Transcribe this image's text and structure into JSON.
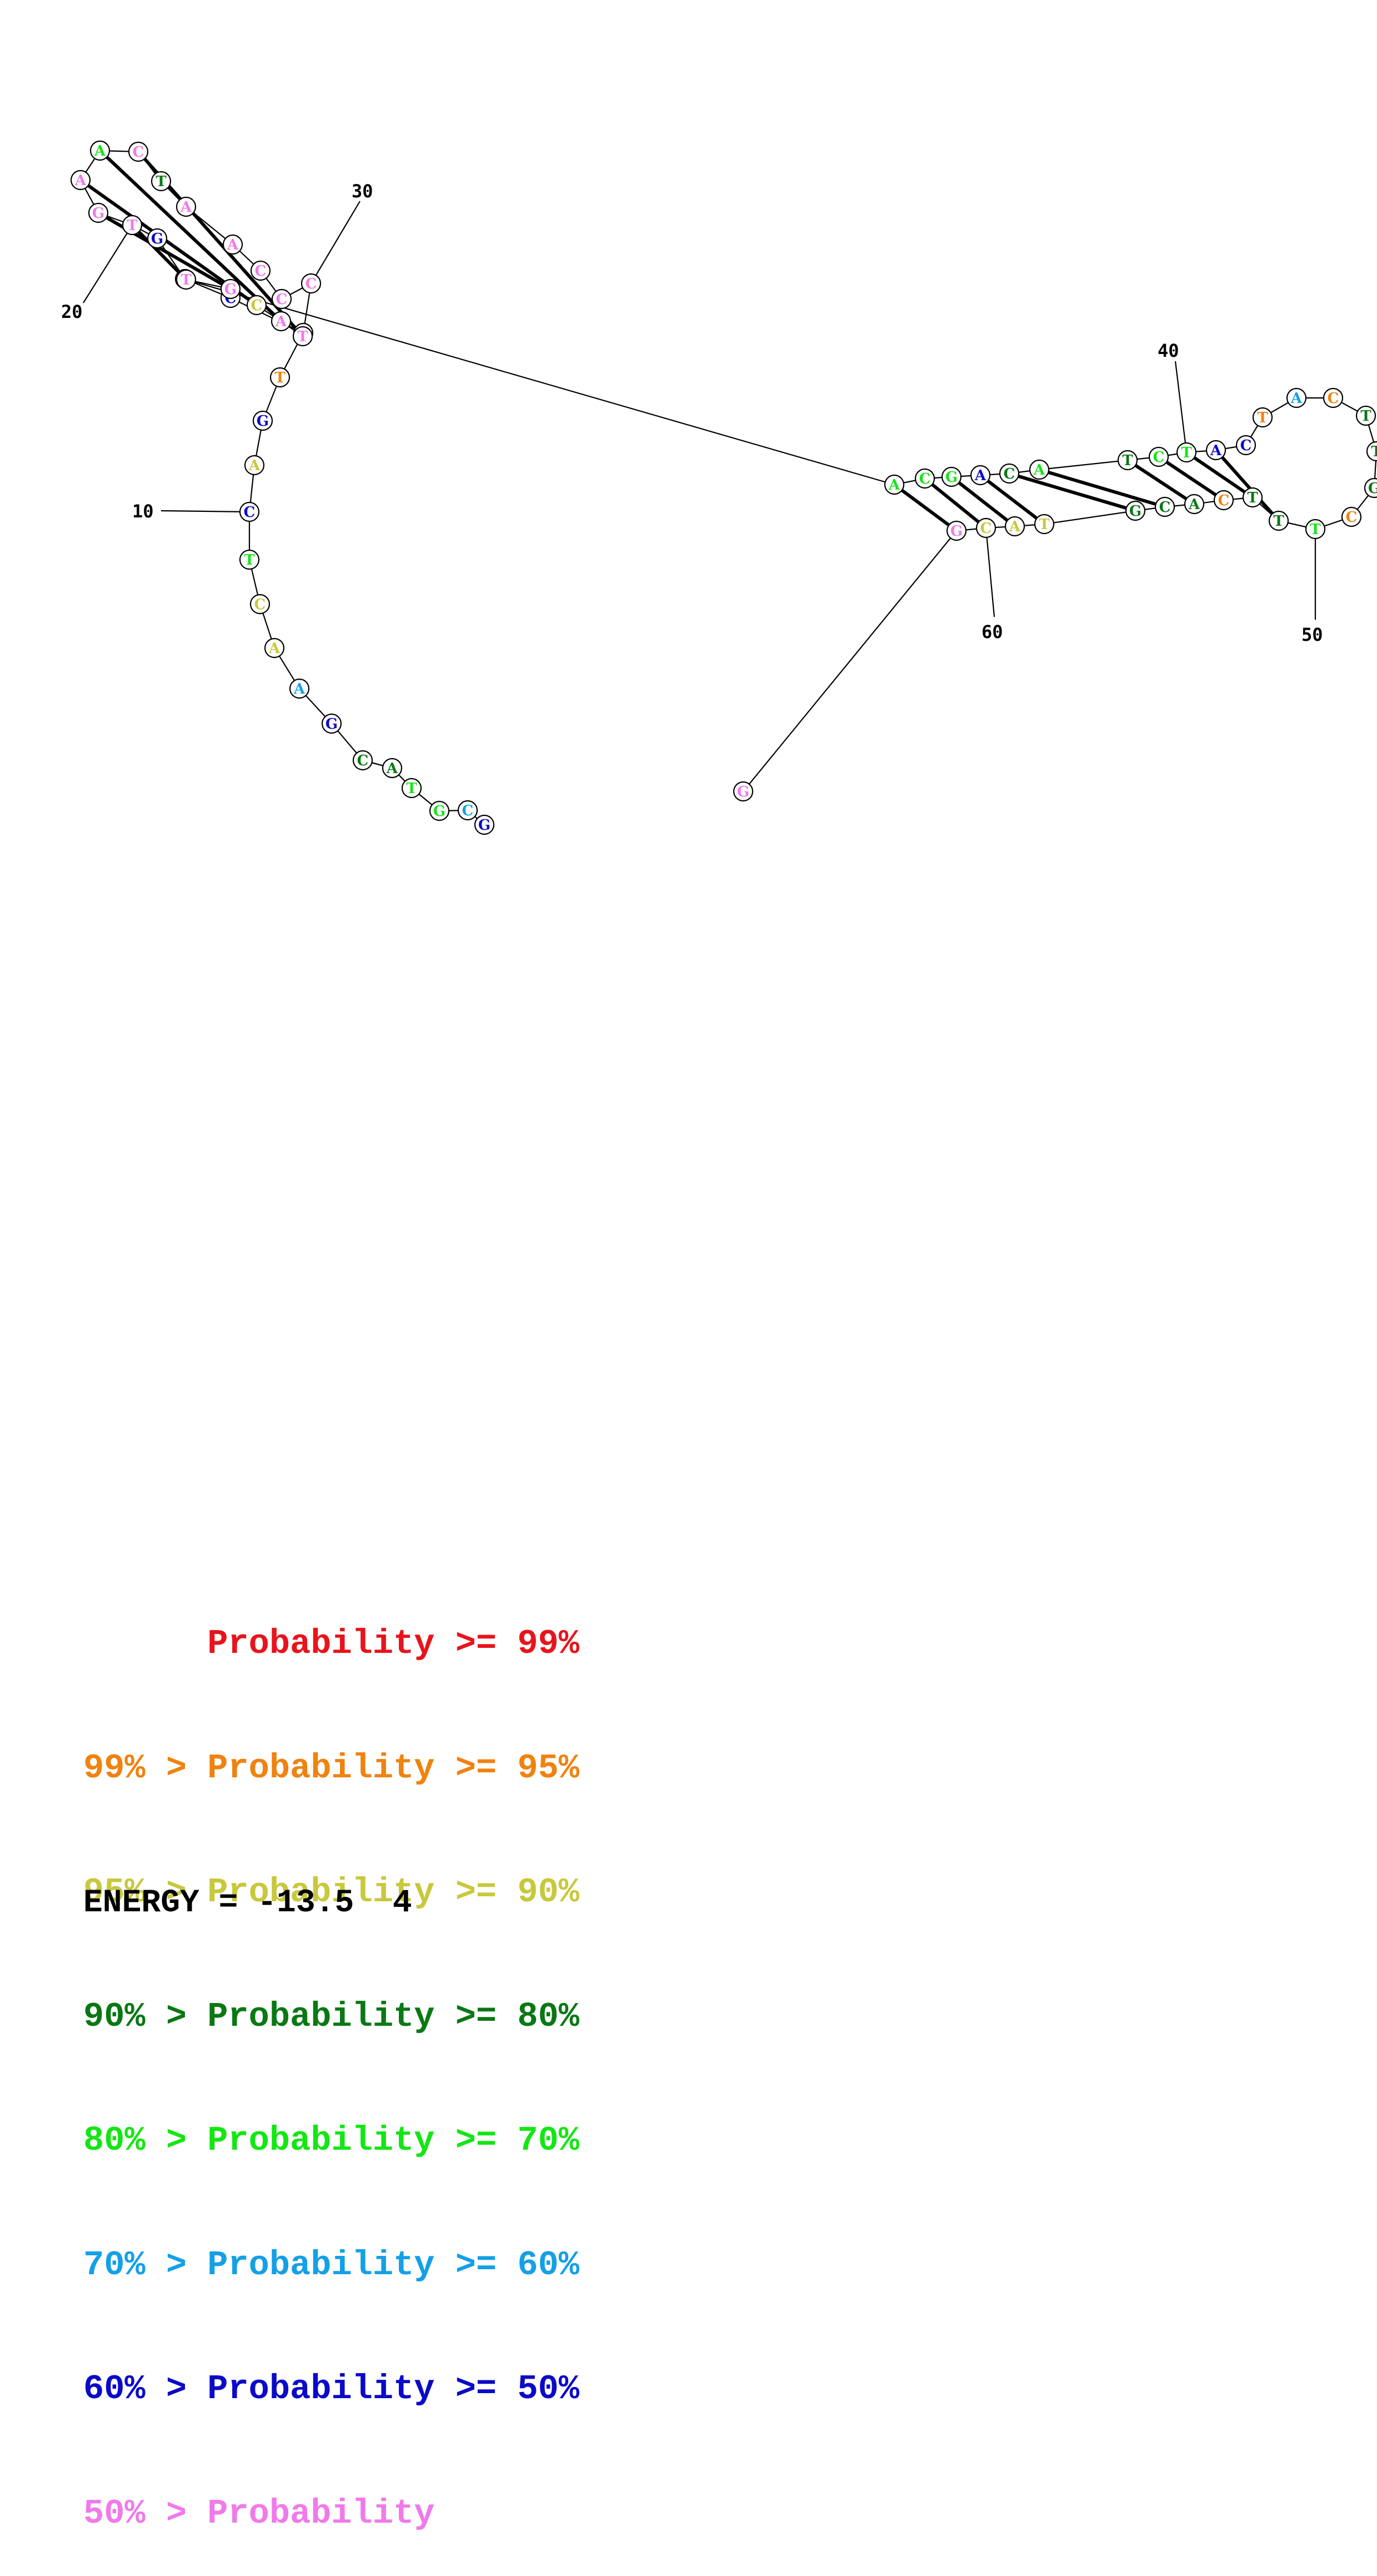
{
  "colors": {
    "p99": "#e8141c",
    "p95": "#f0820f",
    "p90": "#c8c83c",
    "p80": "#0a7814",
    "p70": "#14e614",
    "p60": "#14a0e6",
    "p50": "#0a0ac8",
    "plow": "#f07aea"
  },
  "nucleotides": [
    "G",
    "C",
    "G",
    "T",
    "A",
    "C",
    "G",
    "A",
    "A",
    "C",
    "T",
    "C",
    "A",
    "G",
    "T",
    "A",
    "C",
    "G",
    "G",
    "T",
    "G",
    "A",
    "A",
    "C",
    "T",
    "A",
    "A",
    "C",
    "C",
    "C",
    "T",
    "A",
    "C",
    "G",
    "T",
    "A",
    "C",
    "G",
    "A",
    "C",
    "A",
    "T",
    "C",
    "T",
    "A",
    "C",
    "T",
    "A",
    "C",
    "T",
    "T",
    "G",
    "C",
    "T",
    "T",
    "T",
    "C",
    "A",
    "C",
    "G",
    "T",
    "A",
    "C",
    "G"
  ],
  "probability_classes": [
    "p50",
    "p60",
    "p70",
    "p70",
    "p80",
    "p80",
    "p50",
    "p60",
    "p90",
    "p90",
    "p70",
    "p50",
    "p90",
    "p50",
    "p95",
    "p90",
    "p50",
    "plow",
    "p50",
    "plow",
    "plow",
    "plow",
    "p70",
    "plow",
    "p80",
    "plow",
    "plow",
    "plow",
    "plow",
    "plow",
    "plow",
    "plow",
    "p90",
    "plow",
    "plow",
    "p70",
    "p70",
    "p70",
    "p50",
    "p80",
    "p70",
    "p80",
    "p70",
    "p70",
    "p50",
    "p50",
    "p95",
    "p60",
    "p95",
    "p80",
    "p80",
    "p80",
    "p95",
    "p70",
    "p80",
    "p80",
    "p95",
    "p80",
    "p80",
    "p80",
    "p90",
    "p90",
    "p90",
    "plow"
  ],
  "number_labels": [
    "10",
    "20",
    "30",
    "40",
    "50",
    "60"
  ],
  "legend": [
    {
      "text": "      Probability >= 99%",
      "class": "p99"
    },
    {
      "text": "99% > Probability >= 95%",
      "class": "p95"
    },
    {
      "text": "95% > Probability >= 90%",
      "class": "p90"
    },
    {
      "text": "90% > Probability >= 80%",
      "class": "p80"
    },
    {
      "text": "80% > Probability >= 70%",
      "class": "p70"
    },
    {
      "text": "70% > Probability >= 60%",
      "class": "p60"
    },
    {
      "text": "60% > Probability >= 50%",
      "class": "p50"
    },
    {
      "text": "50% > Probability",
      "class": "plow"
    }
  ],
  "energy": "ENERGY = -13.5  4"
}
